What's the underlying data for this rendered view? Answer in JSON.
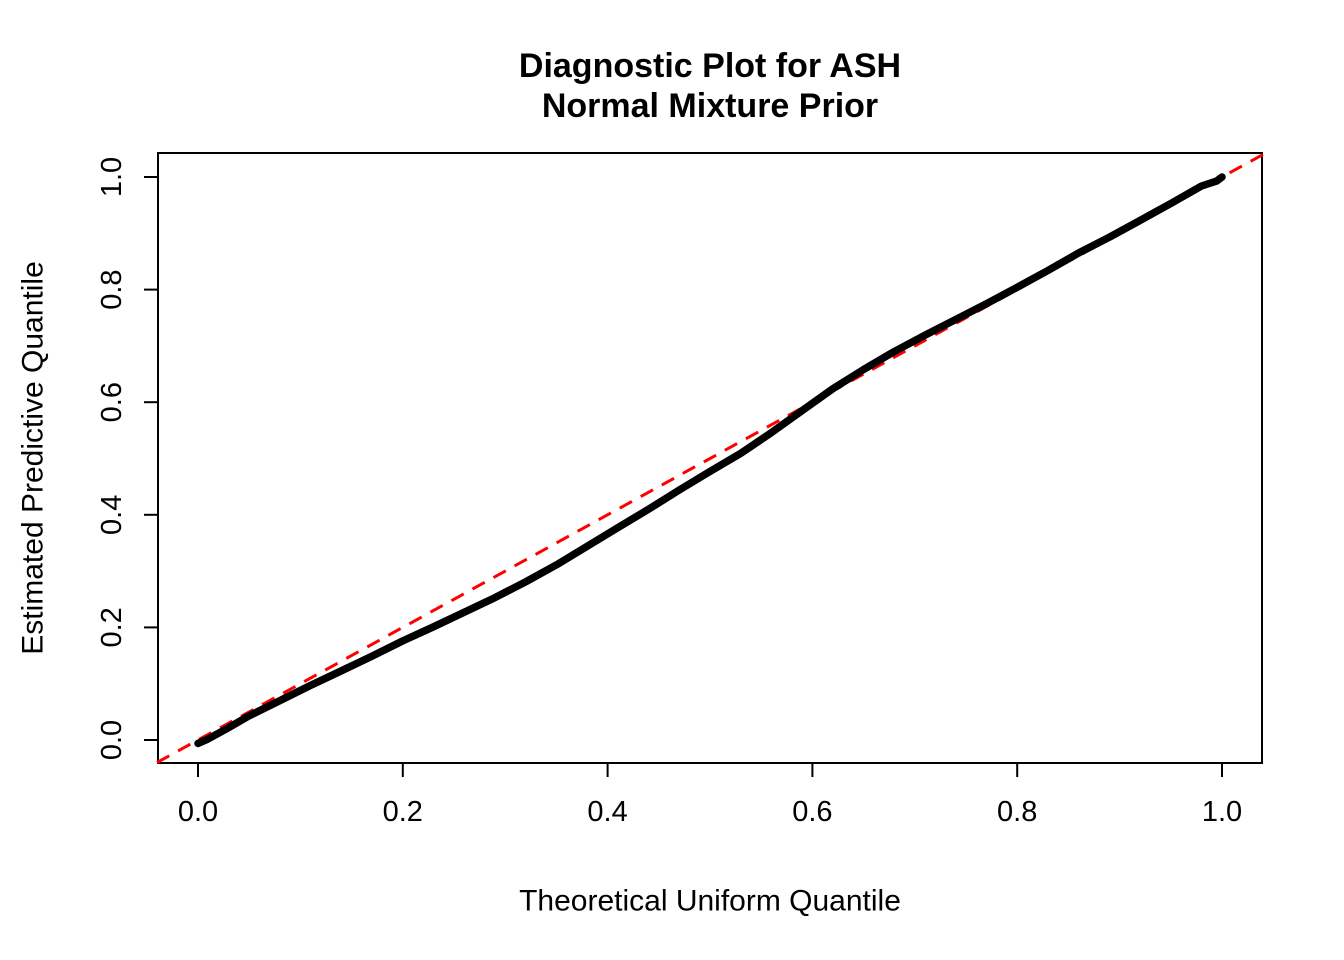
{
  "chart_data": {
    "type": "line",
    "title_line1": "Diagnostic Plot for ASH",
    "title_line2": "Normal Mixture Prior",
    "xlabel": "Theoretical Uniform Quantile",
    "ylabel": "Estimated Predictive Quantile",
    "xlim": [
      -0.04,
      1.04
    ],
    "ylim": [
      -0.04,
      1.04
    ],
    "grid": false,
    "legend": "none",
    "x_ticks": [
      0.0,
      0.2,
      0.4,
      0.6,
      0.8,
      1.0
    ],
    "y_ticks": [
      0.0,
      0.2,
      0.4,
      0.6,
      0.8,
      1.0
    ],
    "x_tick_labels": [
      "0.0",
      "0.2",
      "0.4",
      "0.6",
      "0.8",
      "1.0"
    ],
    "y_tick_labels": [
      "0.0",
      "0.2",
      "0.4",
      "0.6",
      "0.8",
      "1.0"
    ],
    "series": [
      {
        "name": "estimated-predictive-quantiles",
        "type": "line",
        "color": "#000000",
        "stroke_width": 7.5,
        "dashed": false,
        "points": [
          [
            0.0,
            -0.006
          ],
          [
            0.01,
            0.002
          ],
          [
            0.03,
            0.022
          ],
          [
            0.05,
            0.043
          ],
          [
            0.08,
            0.07
          ],
          [
            0.11,
            0.097
          ],
          [
            0.14,
            0.123
          ],
          [
            0.17,
            0.149
          ],
          [
            0.2,
            0.176
          ],
          [
            0.23,
            0.201
          ],
          [
            0.26,
            0.227
          ],
          [
            0.29,
            0.253
          ],
          [
            0.32,
            0.281
          ],
          [
            0.35,
            0.311
          ],
          [
            0.38,
            0.344
          ],
          [
            0.41,
            0.377
          ],
          [
            0.44,
            0.41
          ],
          [
            0.47,
            0.444
          ],
          [
            0.5,
            0.477
          ],
          [
            0.53,
            0.509
          ],
          [
            0.56,
            0.546
          ],
          [
            0.59,
            0.585
          ],
          [
            0.62,
            0.624
          ],
          [
            0.65,
            0.658
          ],
          [
            0.68,
            0.69
          ],
          [
            0.71,
            0.719
          ],
          [
            0.74,
            0.747
          ],
          [
            0.77,
            0.775
          ],
          [
            0.8,
            0.804
          ],
          [
            0.83,
            0.834
          ],
          [
            0.86,
            0.865
          ],
          [
            0.89,
            0.893
          ],
          [
            0.92,
            0.923
          ],
          [
            0.95,
            0.953
          ],
          [
            0.98,
            0.984
          ],
          [
            0.995,
            0.993
          ],
          [
            1.0,
            1.0
          ]
        ]
      },
      {
        "name": "identity-reference-line",
        "type": "line",
        "color": "#FF0000",
        "stroke_width": 3,
        "dashed": true,
        "points": [
          [
            -0.04,
            -0.04
          ],
          [
            1.04,
            1.04
          ]
        ]
      }
    ]
  },
  "colors": {
    "background": "#FFFFFF",
    "axis": "#000000",
    "curve": "#000000",
    "reference_line": "#FF0000"
  }
}
